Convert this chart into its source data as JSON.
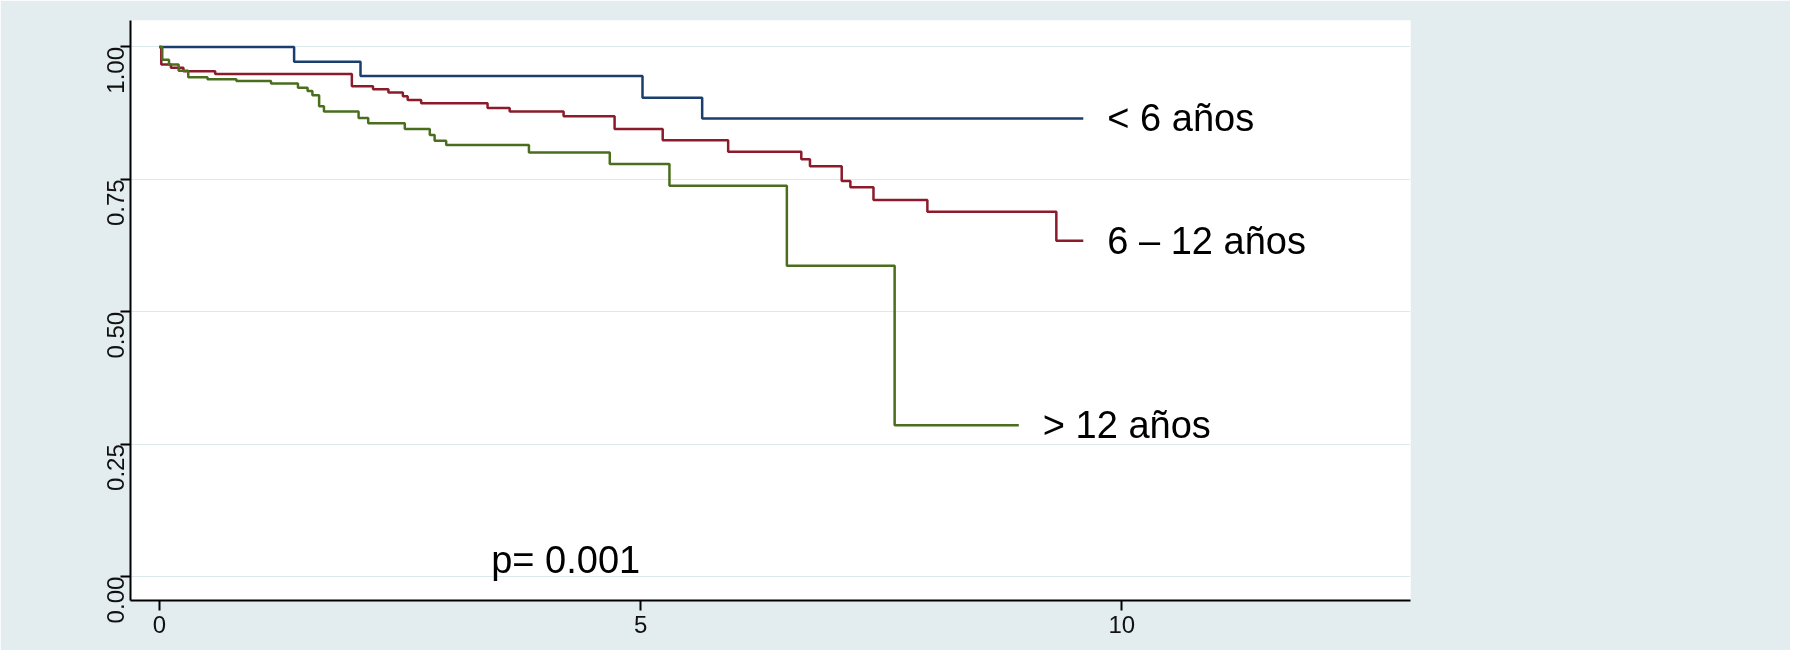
{
  "chart_data": {
    "type": "step",
    "xlim": [
      -0.3,
      13
    ],
    "ylim": [
      -0.045,
      1.05
    ],
    "xticks": [
      0,
      5,
      10
    ],
    "yticks": [
      {
        "value": 0,
        "label": "0.00"
      },
      {
        "value": 0.25,
        "label": "0.25"
      },
      {
        "value": 0.5,
        "label": "0.50"
      },
      {
        "value": 0.75,
        "label": "0.75"
      },
      {
        "value": 1,
        "label": "1.00"
      }
    ],
    "grid": "y",
    "legend": false,
    "marker": "none",
    "line_style": "solid",
    "annotations": [
      "p= 0.001"
    ],
    "series": [
      {
        "name": "< 6 años",
        "color": "#1a3e6e",
        "x": [
          0,
          1.4,
          2.09,
          5.02,
          5.64,
          9.6
        ],
        "values": [
          1.0,
          0.972,
          0.945,
          0.904,
          0.865,
          0.865
        ]
      },
      {
        "name": "6 – 12  años",
        "color": "#8b1a2b",
        "x": [
          0,
          0.02,
          0.12,
          0.25,
          0.58,
          2.0,
          2.22,
          2.38,
          2.53,
          2.58,
          2.72,
          3.41,
          3.64,
          4.2,
          4.73,
          5.23,
          5.91,
          6.67,
          6.76,
          7.09,
          7.18,
          7.42,
          7.98,
          9.32,
          9.6
        ],
        "values": [
          1.0,
          0.967,
          0.961,
          0.954,
          0.949,
          0.926,
          0.92,
          0.914,
          0.907,
          0.9,
          0.894,
          0.885,
          0.878,
          0.869,
          0.845,
          0.824,
          0.802,
          0.788,
          0.775,
          0.747,
          0.735,
          0.711,
          0.689,
          0.634,
          0.634
        ]
      },
      {
        "name": "> 12 años",
        "color": "#4a6e1e",
        "x": [
          0,
          0.03,
          0.1,
          0.2,
          0.3,
          0.5,
          0.8,
          1.16,
          1.44,
          1.54,
          1.59,
          1.66,
          1.71,
          2.07,
          2.17,
          2.55,
          2.81,
          2.86,
          2.98,
          3.84,
          4.68,
          5.3,
          6.52,
          7.64,
          8.93
        ],
        "values": [
          1.0,
          0.976,
          0.967,
          0.955,
          0.943,
          0.939,
          0.936,
          0.931,
          0.923,
          0.917,
          0.909,
          0.888,
          0.878,
          0.866,
          0.856,
          0.845,
          0.834,
          0.823,
          0.815,
          0.801,
          0.779,
          0.738,
          0.587,
          0.286,
          0.286
        ]
      }
    ]
  }
}
